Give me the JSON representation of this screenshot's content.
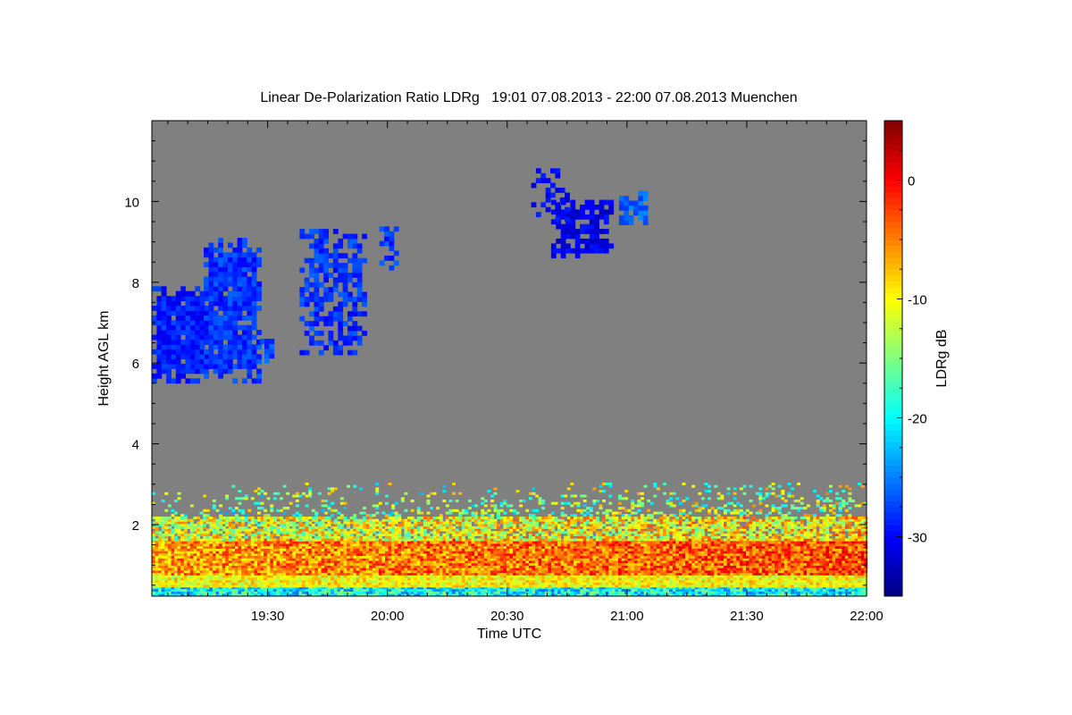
{
  "chart_data": {
    "type": "heatmap",
    "title": "Linear De-Polarization Ratio LDRg   19:01 07.08.2013 - 22:00 07.08.2013 Muenchen",
    "xlabel": "Time UTC",
    "ylabel": "Height AGL km",
    "colorbar_label": "LDRg dB",
    "x_unit": "minutes after 19:00 UTC",
    "xlim": [
      1,
      180
    ],
    "ylim": [
      0.23,
      12
    ],
    "clim": [
      -35,
      5
    ],
    "x_ticks": [
      {
        "value": 30,
        "label": "19:30"
      },
      {
        "value": 60,
        "label": "20:00"
      },
      {
        "value": 90,
        "label": "20:30"
      },
      {
        "value": 120,
        "label": "21:00"
      },
      {
        "value": 150,
        "label": "21:30"
      },
      {
        "value": 180,
        "label": "22:00"
      }
    ],
    "y_ticks": [
      {
        "value": 2,
        "label": "2"
      },
      {
        "value": 4,
        "label": "4"
      },
      {
        "value": 6,
        "label": "6"
      },
      {
        "value": 8,
        "label": "8"
      },
      {
        "value": 10,
        "label": "10"
      }
    ],
    "colorbar_ticks": [
      {
        "value": 0,
        "label": "0"
      },
      {
        "value": -10,
        "label": "-10"
      },
      {
        "value": -20,
        "label": "-20"
      },
      {
        "value": -30,
        "label": "-30"
      }
    ],
    "no_signal_color": "#808080",
    "features": [
      {
        "name": "cirrus-19h-a",
        "t0": 1,
        "t1": 15,
        "h0": 5.5,
        "h1": 7.8,
        "ldr_db": -29,
        "density": 0.97
      },
      {
        "name": "cirrus-19h-b",
        "t0": 14,
        "t1": 28,
        "h0": 5.5,
        "h1": 9.0,
        "ldr_db": -28,
        "density": 0.9
      },
      {
        "name": "cirrus-19h-tail",
        "t0": 28,
        "t1": 31,
        "h0": 6.0,
        "h1": 6.6,
        "ldr_db": -27,
        "density": 0.7
      },
      {
        "name": "cirrus-19h40",
        "t0": 38,
        "t1": 54,
        "h0": 6.2,
        "h1": 9.2,
        "ldr_db": -28,
        "density": 0.7
      },
      {
        "name": "cirrus-19h58",
        "t0": 58,
        "t1": 62,
        "h0": 8.3,
        "h1": 9.3,
        "ldr_db": -28,
        "density": 0.6
      },
      {
        "name": "cirrus-20h45",
        "t0": 101,
        "t1": 116,
        "h0": 8.6,
        "h1": 10.0,
        "ldr_db": -31,
        "density": 0.75
      },
      {
        "name": "cirrus-21h05",
        "t0": 118,
        "t1": 125,
        "h0": 9.3,
        "h1": 10.2,
        "ldr_db": -26,
        "density": 0.6
      },
      {
        "name": "cirrus-20h40-top",
        "t0": 96,
        "t1": 105,
        "h0": 9.5,
        "h1": 10.9,
        "ldr_db": -30,
        "density": 0.3
      }
    ],
    "boundary_layer": [
      {
        "h0": 0.23,
        "h1": 0.45,
        "ldr_db": -20,
        "spread": 6
      },
      {
        "h0": 0.45,
        "h1": 0.75,
        "ldr_db": -10,
        "spread": 4
      },
      {
        "h0": 0.75,
        "h1": 1.6,
        "ldr_db": -6,
        "spread": 5
      },
      {
        "h0": 1.6,
        "h1": 2.2,
        "ldr_db": -12,
        "spread": 7
      },
      {
        "h0": 2.2,
        "h1": 3.0,
        "ldr_db": -16,
        "spread": 8
      }
    ]
  }
}
